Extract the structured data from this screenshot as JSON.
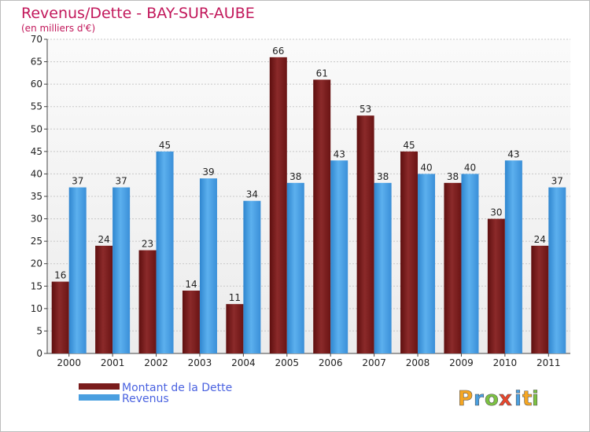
{
  "header": {
    "title": "Revenus/Dette - BAY-SUR-AUBE",
    "subtitle": "(en milliers d'€)"
  },
  "colors": {
    "dette": "#7a1c1c",
    "revenus": "#4a9fe0",
    "title": "#c2185b",
    "legend_text": "#4a62e0"
  },
  "logo": {
    "letters": [
      "P",
      "r",
      "o",
      "x",
      "i",
      "t",
      "i"
    ],
    "colors": [
      "#f5a623",
      "#4a9fe0",
      "#7cc242",
      "#e8462c",
      "#4a9fe0",
      "#f5a623",
      "#7cc242"
    ]
  },
  "chart_data": {
    "type": "bar",
    "categories": [
      "2000",
      "2001",
      "2002",
      "2003",
      "2004",
      "2005",
      "2006",
      "2007",
      "2008",
      "2009",
      "2010",
      "2011"
    ],
    "series": [
      {
        "name": "Montant de la Dette",
        "values": [
          16,
          24,
          23,
          14,
          11,
          66,
          61,
          53,
          45,
          38,
          30,
          24
        ]
      },
      {
        "name": "Revenus",
        "values": [
          37,
          37,
          45,
          39,
          34,
          38,
          43,
          38,
          40,
          40,
          43,
          37
        ]
      }
    ],
    "ylim": [
      0,
      70
    ],
    "yticks": [
      0,
      5,
      10,
      15,
      20,
      25,
      30,
      35,
      40,
      45,
      50,
      55,
      60,
      65,
      70
    ],
    "grid": true,
    "legend": "bottom-left",
    "data_labels": true
  }
}
